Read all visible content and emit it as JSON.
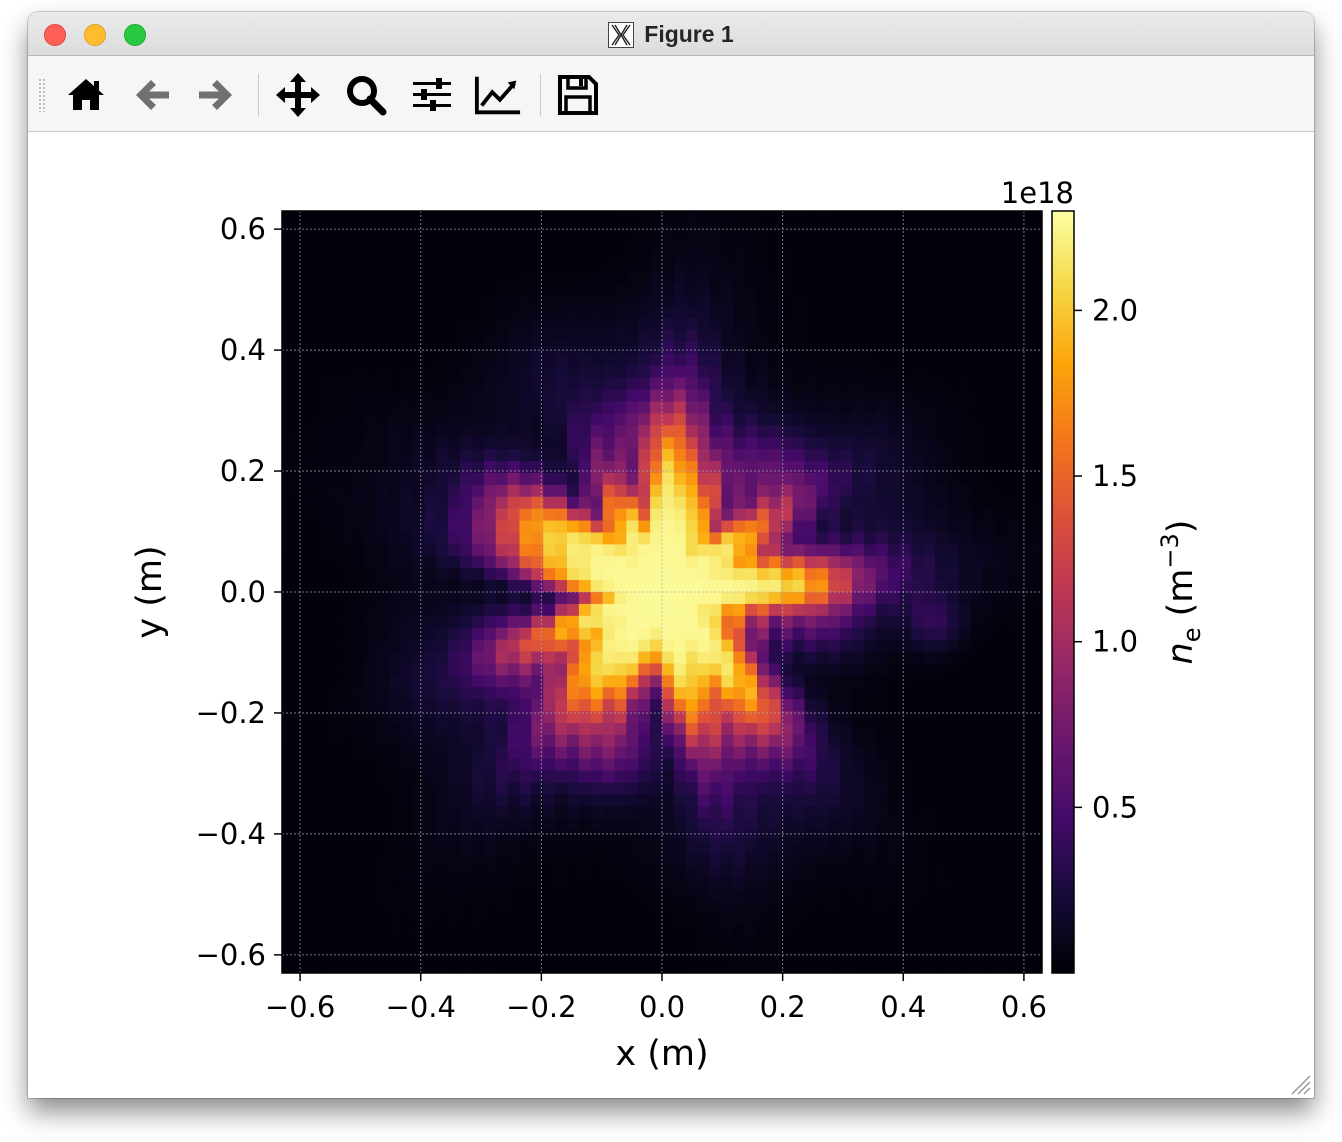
{
  "window": {
    "title": "Figure 1",
    "app_icon": "x11-icon"
  },
  "toolbar": {
    "buttons": [
      {
        "name": "home-button",
        "icon": "home-icon",
        "tooltip": ""
      },
      {
        "name": "back-button",
        "icon": "arrow-left-icon"
      },
      {
        "name": "forward-button",
        "icon": "arrow-right-icon"
      },
      {
        "name": "pan-button",
        "icon": "move-arrows-icon"
      },
      {
        "name": "zoom-button",
        "icon": "magnifier-icon"
      },
      {
        "name": "subplots-button",
        "icon": "sliders-icon"
      },
      {
        "name": "edit-axes-button",
        "icon": "line-chart-icon"
      },
      {
        "name": "save-button",
        "icon": "floppy-disk-icon"
      }
    ]
  },
  "chart_data": {
    "type": "heatmap",
    "title": "",
    "xlabel": "x (m)",
    "ylabel": "y (m)",
    "xlim": [
      -0.63,
      0.63
    ],
    "ylim": [
      -0.63,
      0.63
    ],
    "xticks": [
      -0.6,
      -0.4,
      -0.2,
      0.0,
      0.2,
      0.4,
      0.6
    ],
    "xtick_labels": [
      "−0.6",
      "−0.4",
      "−0.2",
      "0.0",
      "0.2",
      "0.4",
      "0.6"
    ],
    "yticks": [
      0.6,
      0.4,
      0.2,
      0.0,
      -0.2,
      -0.4,
      -0.6
    ],
    "ytick_labels": [
      "0.6",
      "0.4",
      "0.2",
      "0.0",
      "−0.2",
      "−0.4",
      "−0.6"
    ],
    "grid": true,
    "colormap": "inferno",
    "colorbar": {
      "label": "n_e (m^-3)",
      "label_main": "n",
      "label_sub": "e",
      "label_unit_open": " (m",
      "label_unit_sup": "−3",
      "label_unit_close": ")",
      "offset_text": "1e18",
      "range": [
        0.0,
        2.3
      ],
      "ticks": [
        0.5,
        1.0,
        1.5,
        2.0
      ],
      "tick_labels": [
        "0.5",
        "1.0",
        "1.5",
        "2.0"
      ]
    },
    "grid_resolution": 64,
    "field_description_units": "1e18 m^-3",
    "peak_value": 2.25,
    "core_center": [
      0.0,
      0.0
    ]
  }
}
